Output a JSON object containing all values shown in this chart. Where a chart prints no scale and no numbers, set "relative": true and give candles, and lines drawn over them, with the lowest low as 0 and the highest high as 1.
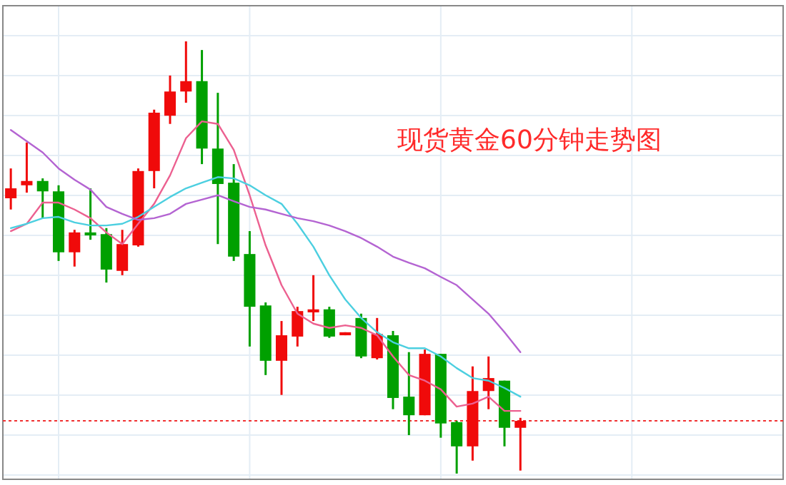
{
  "chart_data": {
    "type": "candlestick",
    "title": "现货黄金60分钟走势图",
    "relative": true,
    "grid": true,
    "categories": [
      null,
      null,
      null,
      null,
      null,
      null,
      null,
      null,
      null,
      null,
      null,
      null,
      null,
      null,
      null,
      null,
      null,
      null,
      null,
      null,
      null,
      null,
      null,
      null,
      null,
      null,
      null,
      null,
      null,
      null,
      null,
      null,
      null,
      null,
      null,
      null,
      null,
      null,
      null,
      null,
      null,
      null,
      null,
      null,
      null,
      null,
      null,
      null,
      null
    ],
    "ohlc": [
      [
        0.637,
        0.706,
        0.611,
        0.66
      ],
      [
        0.667,
        0.766,
        0.65,
        0.677
      ],
      [
        0.677,
        0.683,
        0.591,
        0.653
      ],
      [
        0.653,
        0.667,
        0.492,
        0.512
      ],
      [
        0.512,
        0.564,
        0.479,
        0.558
      ],
      [
        0.558,
        0.66,
        0.541,
        0.551
      ],
      [
        0.554,
        0.568,
        0.442,
        0.472
      ],
      [
        0.469,
        0.564,
        0.459,
        0.531
      ],
      [
        0.528,
        0.706,
        0.525,
        0.7
      ],
      [
        0.7,
        0.842,
        0.66,
        0.835
      ],
      [
        0.828,
        0.921,
        0.809,
        0.884
      ],
      [
        0.884,
        1,
        0.858,
        0.908
      ],
      [
        0.908,
        0.98,
        0.716,
        0.752
      ],
      [
        0.752,
        0.881,
        0.531,
        0.67
      ],
      [
        0.673,
        0.716,
        0.492,
        0.502
      ],
      [
        0.508,
        0.561,
        0.294,
        0.386
      ],
      [
        0.389,
        0.396,
        0.228,
        0.261
      ],
      [
        0.261,
        0.353,
        0.182,
        0.32
      ],
      [
        0.317,
        0.386,
        0.294,
        0.376
      ],
      [
        0.373,
        0.459,
        0.353,
        0.38
      ],
      [
        0.38,
        0.386,
        0.314,
        0.317
      ],
      [
        0.32,
        0.327,
        0.32,
        0.327
      ],
      [
        0.36,
        0.37,
        0.267,
        0.271
      ],
      [
        0.267,
        0.36,
        0.264,
        0.323
      ],
      [
        0.32,
        0.33,
        0.149,
        0.175
      ],
      [
        0.178,
        0.281,
        0.089,
        0.135
      ],
      [
        0.135,
        0.287,
        0.135,
        0.277
      ],
      [
        0.277,
        0.277,
        0.083,
        0.116
      ],
      [
        0.119,
        0.122,
        0,
        0.063
      ],
      [
        0.063,
        0.248,
        0.03,
        0.191
      ],
      [
        0.191,
        0.271,
        0.149,
        0.221
      ],
      [
        0.215,
        0.215,
        0.063,
        0.106
      ],
      [
        0.106,
        0.129,
        0.007,
        0.122
      ],
      null,
      null,
      null,
      null,
      null,
      null,
      null,
      null,
      null,
      null,
      null,
      null,
      null,
      null,
      null,
      null
    ],
    "colors": [
      "#f00a0a",
      "#f00a0a",
      "#00a000",
      "#00a000",
      "#f00a0a",
      "#00a000",
      "#00a000",
      "#f00a0a",
      "#f00a0a",
      "#f00a0a",
      "#f00a0a",
      "#f00a0a",
      "#00a000",
      "#00a000",
      "#00a000",
      "#00a000",
      "#00a000",
      "#f00a0a",
      "#f00a0a",
      "#f00a0a",
      "#00a000",
      "#f00a0a",
      "#00a000",
      "#f00a0a",
      "#00a000",
      "#00a000",
      "#f00a0a",
      "#00a000",
      "#00a000",
      "#f00a0a",
      "#f00a0a",
      "#00a000",
      "#f00a0a",
      null,
      null,
      null,
      null,
      null,
      null,
      null,
      null,
      null,
      null,
      null,
      null,
      null,
      null,
      null,
      null
    ],
    "series": [
      {
        "type": "line",
        "color": "#ec6090",
        "values": [
          0.561,
          0.578,
          0.627,
          0.627,
          0.611,
          0.591,
          0.558,
          0.531,
          0.578,
          0.624,
          0.69,
          0.776,
          0.815,
          0.809,
          0.749,
          0.644,
          0.528,
          0.436,
          0.37,
          0.347,
          0.337,
          0.343,
          0.337,
          0.32,
          0.271,
          0.228,
          0.215,
          0.195,
          0.155,
          0.162,
          0.178,
          0.145,
          0.145,
          null,
          null,
          null,
          null,
          null,
          null,
          null,
          null,
          null,
          null,
          null,
          null,
          null,
          null,
          null,
          null
        ]
      },
      {
        "type": "line",
        "color": "#4ccfe0",
        "values": [
          0.568,
          0.578,
          0.591,
          0.594,
          0.581,
          0.574,
          0.574,
          0.578,
          0.594,
          0.617,
          0.64,
          0.66,
          0.673,
          0.686,
          0.683,
          0.667,
          0.644,
          0.624,
          0.578,
          0.525,
          0.459,
          0.403,
          0.36,
          0.327,
          0.304,
          0.29,
          0.29,
          0.271,
          0.244,
          0.221,
          0.215,
          0.198,
          0.178,
          null,
          null,
          null,
          null,
          null,
          null,
          null,
          null,
          null,
          null,
          null,
          null,
          null,
          null,
          null,
          null
        ]
      },
      {
        "type": "line",
        "color": "#b464d2",
        "values": [
          0.795,
          0.769,
          0.743,
          0.706,
          0.68,
          0.657,
          0.617,
          0.601,
          0.587,
          0.591,
          0.601,
          0.624,
          0.634,
          0.644,
          0.63,
          0.617,
          0.611,
          0.601,
          0.591,
          0.584,
          0.574,
          0.561,
          0.545,
          0.525,
          0.502,
          0.488,
          0.475,
          0.455,
          0.436,
          0.403,
          0.37,
          0.327,
          0.281,
          null,
          null,
          null,
          null,
          null,
          null,
          null,
          null,
          null,
          null,
          null,
          null,
          null,
          null,
          null,
          null
        ]
      }
    ],
    "ref_lines": [
      {
        "axis": "y",
        "value": 0.122,
        "color": "#f03030",
        "line_style": "dotted"
      }
    ]
  }
}
